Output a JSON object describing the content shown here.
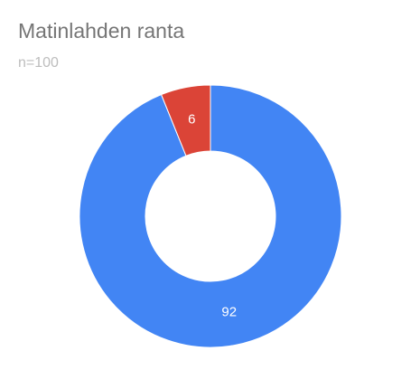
{
  "chart_data": {
    "type": "pie",
    "title": "Matinlahden ranta",
    "subtitle": "n=100",
    "values": [
      92,
      6
    ],
    "colors": [
      "#4285f4",
      "#db4437"
    ],
    "donut": true
  }
}
